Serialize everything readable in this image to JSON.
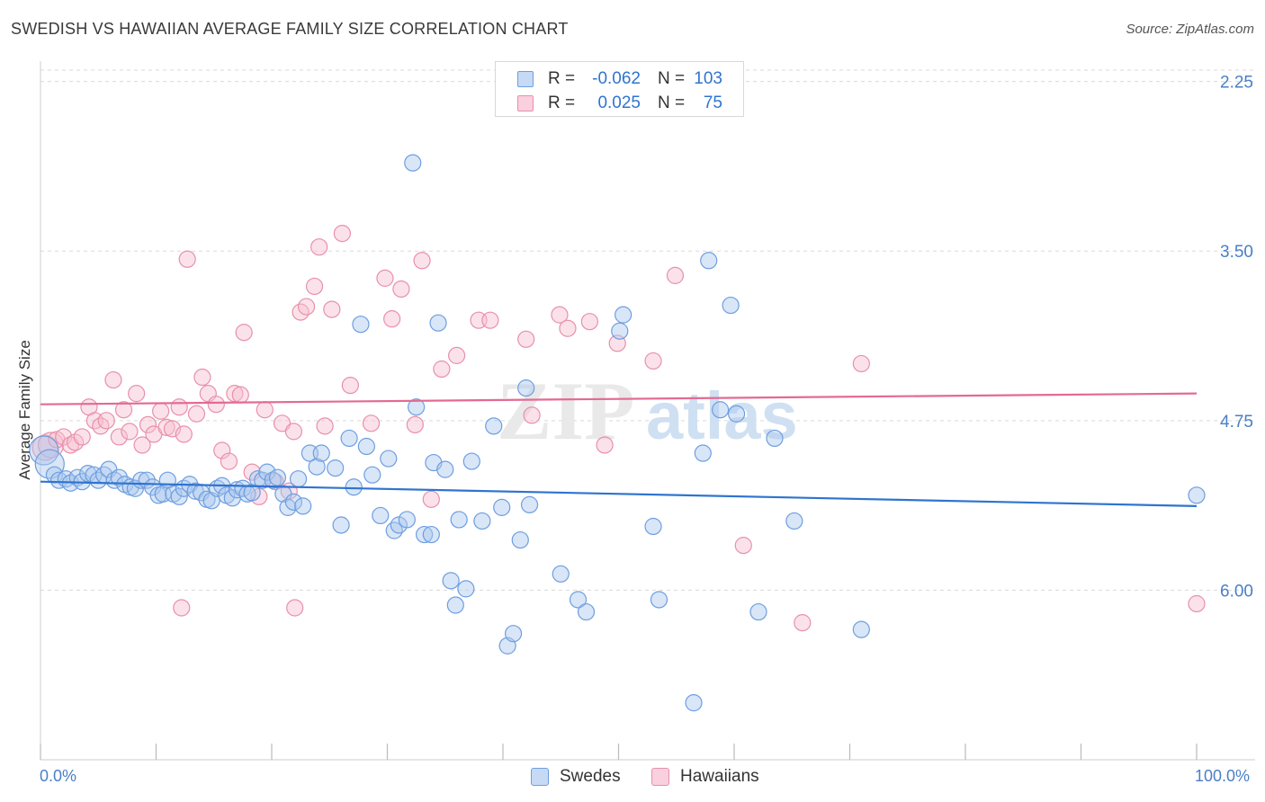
{
  "title": "SWEDISH VS HAWAIIAN AVERAGE FAMILY SIZE CORRELATION CHART",
  "source": "Source: ZipAtlas.com",
  "watermark": {
    "zip": "ZIP",
    "atlas": "atlas"
  },
  "legend": {
    "rows": [
      {
        "r_label": "R =",
        "r_value": "-0.062",
        "n_label": "N =",
        "n_value": "103"
      },
      {
        "r_label": "R =",
        "r_value": "0.025",
        "n_label": "N =",
        "n_value": "75"
      }
    ]
  },
  "bottom_legend": {
    "swedes": "Swedes",
    "hawaiians": "Hawaiians"
  },
  "x_axis": {
    "min_label": "0.0%",
    "max_label": "100.0%"
  },
  "y_axis": {
    "label": "Average Family Size",
    "ticks": [
      "6.00",
      "4.75",
      "3.50",
      "2.25"
    ]
  },
  "colors": {
    "blue_fill": "#aac8ee",
    "blue_stroke": "#6d9ee0",
    "blue_line": "#2f74cf",
    "pink_fill": "#f7bfd0",
    "pink_stroke": "#e890ab",
    "pink_line": "#e36a93",
    "tick_text": "#4a7fc7",
    "grid": "#d9d9d9"
  },
  "chart_data": {
    "type": "scatter",
    "title": "SWEDISH VS HAWAIIAN AVERAGE FAMILY SIZE CORRELATION CHART",
    "xlabel": "",
    "ylabel": "Average Family Size",
    "xlim": [
      0,
      100
    ],
    "ylim": [
      1.0,
      6.15
    ],
    "y_ticks": [
      2.25,
      3.5,
      4.75,
      6.0
    ],
    "grid": "horizontal dashed",
    "legend_position": "top-center",
    "series": [
      {
        "name": "Swedes",
        "r": -0.062,
        "n": 103,
        "trend": {
          "x": [
            0,
            100
          ],
          "y": [
            3.05,
            2.87
          ]
        },
        "points": [
          [
            0.3,
            3.28
          ],
          [
            0.8,
            3.18
          ],
          [
            1.2,
            3.1
          ],
          [
            1.6,
            3.06
          ],
          [
            2.2,
            3.07
          ],
          [
            2.6,
            3.04
          ],
          [
            3.2,
            3.08
          ],
          [
            3.6,
            3.05
          ],
          [
            4.1,
            3.11
          ],
          [
            4.6,
            3.1
          ],
          [
            5.0,
            3.06
          ],
          [
            5.5,
            3.1
          ],
          [
            5.9,
            3.14
          ],
          [
            6.4,
            3.06
          ],
          [
            6.8,
            3.08
          ],
          [
            7.3,
            3.03
          ],
          [
            7.8,
            3.01
          ],
          [
            8.2,
            3.0
          ],
          [
            8.7,
            3.06
          ],
          [
            9.2,
            3.06
          ],
          [
            9.7,
            3.01
          ],
          [
            10.2,
            2.95
          ],
          [
            10.6,
            2.96
          ],
          [
            11.0,
            3.06
          ],
          [
            11.5,
            2.96
          ],
          [
            12.0,
            2.94
          ],
          [
            12.4,
            3.0
          ],
          [
            12.9,
            3.03
          ],
          [
            13.4,
            2.98
          ],
          [
            13.9,
            2.97
          ],
          [
            14.4,
            2.92
          ],
          [
            14.8,
            2.91
          ],
          [
            15.3,
            3.0
          ],
          [
            15.7,
            3.02
          ],
          [
            16.1,
            2.95
          ],
          [
            16.6,
            2.93
          ],
          [
            17.0,
            2.99
          ],
          [
            17.5,
            3.0
          ],
          [
            17.9,
            2.96
          ],
          [
            18.3,
            2.97
          ],
          [
            18.8,
            3.07
          ],
          [
            19.2,
            3.06
          ],
          [
            19.6,
            3.12
          ],
          [
            20.1,
            3.06
          ],
          [
            20.5,
            3.08
          ],
          [
            21.0,
            2.96
          ],
          [
            21.4,
            2.86
          ],
          [
            21.9,
            2.9
          ],
          [
            22.3,
            3.07
          ],
          [
            22.7,
            2.87
          ],
          [
            23.3,
            3.26
          ],
          [
            23.9,
            3.16
          ],
          [
            24.3,
            3.26
          ],
          [
            25.5,
            3.15
          ],
          [
            26.0,
            2.73
          ],
          [
            26.7,
            3.37
          ],
          [
            27.1,
            3.01
          ],
          [
            27.7,
            4.21
          ],
          [
            28.2,
            3.31
          ],
          [
            28.7,
            3.1
          ],
          [
            29.4,
            2.8
          ],
          [
            30.1,
            3.22
          ],
          [
            30.6,
            2.69
          ],
          [
            31.0,
            2.73
          ],
          [
            31.7,
            2.77
          ],
          [
            32.2,
            5.4
          ],
          [
            32.5,
            3.6
          ],
          [
            33.2,
            2.66
          ],
          [
            33.8,
            2.66
          ],
          [
            34.0,
            3.19
          ],
          [
            34.4,
            4.22
          ],
          [
            35.0,
            3.14
          ],
          [
            35.5,
            2.32
          ],
          [
            35.9,
            2.14
          ],
          [
            36.2,
            2.77
          ],
          [
            36.8,
            2.26
          ],
          [
            37.3,
            3.2
          ],
          [
            38.2,
            2.76
          ],
          [
            39.2,
            3.46
          ],
          [
            39.9,
            2.86
          ],
          [
            40.4,
            1.84
          ],
          [
            40.9,
            1.93
          ],
          [
            41.5,
            2.62
          ],
          [
            42.0,
            3.74
          ],
          [
            42.3,
            2.88
          ],
          [
            45.0,
            2.37
          ],
          [
            46.5,
            2.18
          ],
          [
            47.2,
            2.09
          ],
          [
            50.1,
            4.16
          ],
          [
            50.4,
            4.28
          ],
          [
            53.0,
            2.72
          ],
          [
            53.5,
            2.18
          ],
          [
            57.3,
            3.26
          ],
          [
            57.8,
            4.68
          ],
          [
            59.7,
            4.35
          ],
          [
            56.5,
            1.42
          ],
          [
            58.8,
            3.58
          ],
          [
            60.2,
            3.55
          ],
          [
            62.1,
            2.09
          ],
          [
            63.5,
            3.37
          ],
          [
            65.2,
            2.76
          ],
          [
            71.0,
            1.96
          ],
          [
            100.0,
            2.95
          ]
        ]
      },
      {
        "name": "Hawaiians",
        "r": 0.025,
        "n": 75,
        "trend": {
          "x": [
            0,
            100
          ],
          "y": [
            3.62,
            3.7
          ]
        },
        "points": [
          [
            0.4,
            3.3
          ],
          [
            0.9,
            3.32
          ],
          [
            1.4,
            3.36
          ],
          [
            2.0,
            3.38
          ],
          [
            2.6,
            3.32
          ],
          [
            3.0,
            3.34
          ],
          [
            3.6,
            3.38
          ],
          [
            4.2,
            3.6
          ],
          [
            4.7,
            3.5
          ],
          [
            5.2,
            3.46
          ],
          [
            5.7,
            3.5
          ],
          [
            6.3,
            3.8
          ],
          [
            6.8,
            3.38
          ],
          [
            7.2,
            3.58
          ],
          [
            7.7,
            3.42
          ],
          [
            8.3,
            3.7
          ],
          [
            8.8,
            3.32
          ],
          [
            9.3,
            3.47
          ],
          [
            9.8,
            3.4
          ],
          [
            10.4,
            3.57
          ],
          [
            10.9,
            3.45
          ],
          [
            11.4,
            3.44
          ],
          [
            12.0,
            3.6
          ],
          [
            12.4,
            3.4
          ],
          [
            12.7,
            4.69
          ],
          [
            13.5,
            3.55
          ],
          [
            14.0,
            3.82
          ],
          [
            14.5,
            3.7
          ],
          [
            15.2,
            3.62
          ],
          [
            15.7,
            3.28
          ],
          [
            16.3,
            3.2
          ],
          [
            16.8,
            3.7
          ],
          [
            17.3,
            3.69
          ],
          [
            17.6,
            4.15
          ],
          [
            18.3,
            3.12
          ],
          [
            18.9,
            2.94
          ],
          [
            19.4,
            3.58
          ],
          [
            20.3,
            3.05
          ],
          [
            20.9,
            3.48
          ],
          [
            21.5,
            2.98
          ],
          [
            21.9,
            3.42
          ],
          [
            22.5,
            4.3
          ],
          [
            23.0,
            4.34
          ],
          [
            23.7,
            4.49
          ],
          [
            24.1,
            4.78
          ],
          [
            24.6,
            3.46
          ],
          [
            25.2,
            4.32
          ],
          [
            26.1,
            4.88
          ],
          [
            26.8,
            3.76
          ],
          [
            28.6,
            3.48
          ],
          [
            29.8,
            4.55
          ],
          [
            30.4,
            4.25
          ],
          [
            31.2,
            4.47
          ],
          [
            32.4,
            3.47
          ],
          [
            33.0,
            4.68
          ],
          [
            33.8,
            2.92
          ],
          [
            34.7,
            3.88
          ],
          [
            36.0,
            3.98
          ],
          [
            37.9,
            4.24
          ],
          [
            38.9,
            4.24
          ],
          [
            42.0,
            4.1
          ],
          [
            42.5,
            3.54
          ],
          [
            44.9,
            4.28
          ],
          [
            45.6,
            4.18
          ],
          [
            47.5,
            4.23
          ],
          [
            48.8,
            3.32
          ],
          [
            49.9,
            4.07
          ],
          [
            53.0,
            3.94
          ],
          [
            54.9,
            4.57
          ],
          [
            60.8,
            2.58
          ],
          [
            65.9,
            2.01
          ],
          [
            71.0,
            3.92
          ],
          [
            100.0,
            2.15
          ],
          [
            12.2,
            2.12
          ],
          [
            22.0,
            2.12
          ]
        ]
      }
    ]
  }
}
